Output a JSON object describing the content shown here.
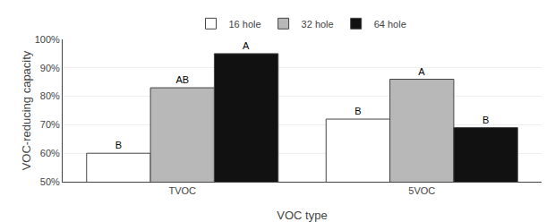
{
  "chart_data": {
    "type": "bar",
    "categories": [
      "TVOC",
      "5VOC"
    ],
    "series": [
      {
        "name": "16 hole",
        "color": "#ffffff",
        "values": [
          60,
          72
        ],
        "annotations": [
          "B",
          "B"
        ]
      },
      {
        "name": "32 hole",
        "color": "#b8b8b8",
        "values": [
          83,
          86
        ],
        "annotations": [
          "AB",
          "A"
        ]
      },
      {
        "name": "64 hole",
        "color": "#111111",
        "values": [
          95,
          69
        ],
        "annotations": [
          "A",
          "B"
        ]
      }
    ],
    "xlabel": "VOC type",
    "ylabel": "VOC-reducing capacity",
    "ylim": [
      50,
      100
    ],
    "yticks": [
      {
        "value": 50,
        "label": "50%"
      },
      {
        "value": 60,
        "label": "60%"
      },
      {
        "value": 70,
        "label": "70%"
      },
      {
        "value": 80,
        "label": "80%"
      },
      {
        "value": 90,
        "label": "90%"
      },
      {
        "value": 100,
        "label": "100%"
      }
    ],
    "grid": true,
    "legend": "top"
  }
}
